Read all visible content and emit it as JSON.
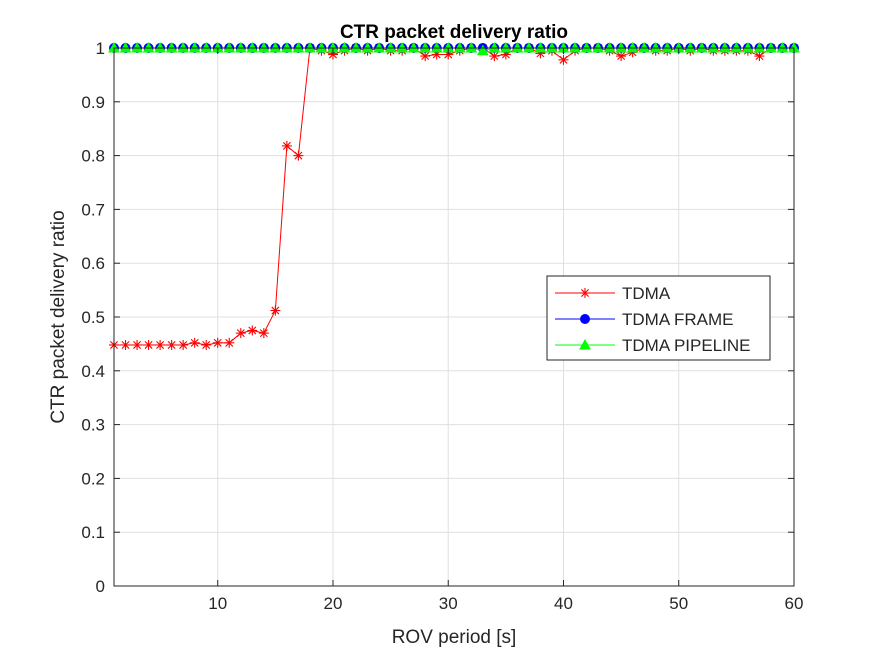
{
  "chart_data": {
    "type": "line",
    "title": "CTR packet delivery ratio",
    "xlabel": "ROV period [s]",
    "ylabel": "CTR packet delivery ratio",
    "xlim": [
      1,
      60
    ],
    "ylim": [
      0,
      1
    ],
    "xticks": [
      10,
      20,
      30,
      40,
      50,
      60
    ],
    "yticks": [
      0,
      0.1,
      0.2,
      0.3,
      0.4,
      0.5,
      0.6,
      0.7,
      0.8,
      0.9,
      1
    ],
    "xtick_labels": [
      "10",
      "20",
      "30",
      "40",
      "50",
      "60"
    ],
    "ytick_labels": [
      "0",
      "0.1",
      "0.2",
      "0.3",
      "0.4",
      "0.5",
      "0.6",
      "0.7",
      "0.8",
      "0.9",
      "1"
    ],
    "grid": true,
    "legend_position": "right",
    "x": [
      1,
      2,
      3,
      4,
      5,
      6,
      7,
      8,
      9,
      10,
      11,
      12,
      13,
      14,
      15,
      16,
      17,
      18,
      19,
      20,
      21,
      22,
      23,
      24,
      25,
      26,
      27,
      28,
      29,
      30,
      31,
      32,
      33,
      34,
      35,
      36,
      37,
      38,
      39,
      40,
      41,
      42,
      43,
      44,
      45,
      46,
      47,
      48,
      49,
      50,
      51,
      52,
      53,
      54,
      55,
      56,
      57,
      58,
      59,
      60
    ],
    "series": [
      {
        "name": "TDMA",
        "color": "#ff0000",
        "marker": "asterisk",
        "values": [
          0.448,
          0.448,
          0.448,
          0.448,
          0.448,
          0.448,
          0.448,
          0.452,
          0.448,
          0.452,
          0.452,
          0.47,
          0.475,
          0.47,
          0.512,
          0.818,
          0.8,
          1.0,
          0.995,
          0.988,
          0.995,
          1.0,
          0.995,
          1.0,
          0.995,
          0.995,
          1.0,
          0.985,
          0.988,
          0.988,
          0.995,
          1.0,
          1.0,
          0.985,
          0.988,
          1.0,
          1.0,
          0.99,
          0.995,
          0.978,
          0.995,
          1.0,
          1.0,
          0.995,
          0.985,
          0.992,
          1.0,
          0.995,
          0.995,
          1.0,
          0.995,
          1.0,
          0.995,
          0.995,
          0.995,
          0.995,
          0.985,
          1.0,
          1.0,
          1.0
        ]
      },
      {
        "name": "TDMA FRAME",
        "color": "#0000ff",
        "marker": "circle",
        "values": [
          1,
          1,
          1,
          1,
          1,
          1,
          1,
          1,
          1,
          1,
          1,
          1,
          1,
          1,
          1,
          1,
          1,
          1,
          1,
          1,
          1,
          1,
          1,
          1,
          1,
          1,
          1,
          1,
          1,
          1,
          1,
          1,
          1,
          1,
          1,
          1,
          1,
          1,
          1,
          1,
          1,
          1,
          1,
          1,
          1,
          1,
          1,
          1,
          1,
          1,
          1,
          1,
          1,
          1,
          1,
          1,
          1,
          1,
          1,
          1
        ]
      },
      {
        "name": "TDMA PIPELINE",
        "color": "#00ff00",
        "marker": "triangle",
        "values": [
          1,
          1,
          1,
          1,
          1,
          1,
          1,
          1,
          1,
          1,
          1,
          1,
          1,
          1,
          1,
          1,
          1,
          1,
          1,
          1,
          1,
          1,
          1,
          1,
          1,
          1,
          1,
          1,
          1,
          1,
          1,
          1,
          0.995,
          1,
          1,
          1,
          1,
          1,
          1,
          1,
          1,
          1,
          1,
          1,
          1,
          1,
          1,
          1,
          1,
          1,
          1,
          1,
          1,
          1,
          1,
          1,
          1,
          1,
          1,
          1
        ]
      }
    ]
  }
}
